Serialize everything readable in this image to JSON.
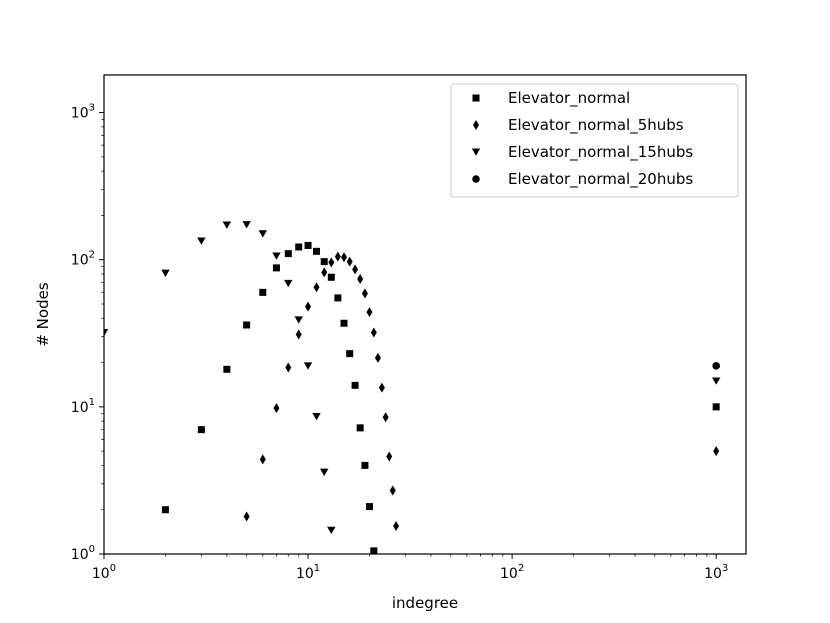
{
  "chart_data": {
    "type": "scatter",
    "xscale": "log",
    "yscale": "log",
    "xlim": [
      1,
      1400
    ],
    "ylim": [
      1,
      1800
    ],
    "xlabel": "indegree",
    "ylabel": "# Nodes",
    "x_ticks": [
      {
        "base": "10",
        "exp": "0"
      },
      {
        "base": "10",
        "exp": "1"
      },
      {
        "base": "10",
        "exp": "2"
      },
      {
        "base": "10",
        "exp": "3"
      }
    ],
    "y_ticks": [
      {
        "base": "10",
        "exp": "0"
      },
      {
        "base": "10",
        "exp": "1"
      },
      {
        "base": "10",
        "exp": "2"
      },
      {
        "base": "10",
        "exp": "3"
      }
    ],
    "grid": false,
    "legend_position": "top-right",
    "series": [
      {
        "name": "Elevator_normal",
        "marker": "square",
        "color": "#000000",
        "points": [
          [
            2,
            2
          ],
          [
            3,
            7
          ],
          [
            4,
            18
          ],
          [
            5,
            36
          ],
          [
            6,
            60
          ],
          [
            7,
            88
          ],
          [
            8,
            110
          ],
          [
            9,
            122
          ],
          [
            10,
            125
          ],
          [
            11,
            114
          ],
          [
            12,
            97
          ],
          [
            13,
            76
          ],
          [
            14,
            55
          ],
          [
            15,
            37
          ],
          [
            16,
            23
          ],
          [
            17,
            14
          ],
          [
            18,
            7.2
          ],
          [
            19,
            4
          ],
          [
            20,
            2.1
          ],
          [
            21,
            1.05
          ],
          [
            1000,
            10
          ]
        ]
      },
      {
        "name": "Elevator_normal_5hubs",
        "marker": "diamond",
        "color": "#000000",
        "points": [
          [
            5,
            1.8
          ],
          [
            6,
            4.4
          ],
          [
            7,
            9.8
          ],
          [
            8,
            18.5
          ],
          [
            9,
            31
          ],
          [
            10,
            48
          ],
          [
            11,
            65
          ],
          [
            12,
            82
          ],
          [
            13,
            96
          ],
          [
            14,
            105
          ],
          [
            15,
            104
          ],
          [
            16,
            97
          ],
          [
            17,
            86
          ],
          [
            18,
            74
          ],
          [
            19,
            59
          ],
          [
            20,
            44
          ],
          [
            21,
            32
          ],
          [
            22,
            21.5
          ],
          [
            23,
            13.5
          ],
          [
            24,
            8.5
          ],
          [
            25,
            4.6
          ],
          [
            26,
            2.7
          ],
          [
            27,
            1.55
          ],
          [
            1000,
            5
          ]
        ]
      },
      {
        "name": "Elevator_normal_15hubs",
        "marker": "triangle-down",
        "color": "#000000",
        "points": [
          [
            1,
            32
          ],
          [
            2,
            81
          ],
          [
            3,
            134
          ],
          [
            4,
            172
          ],
          [
            5,
            173
          ],
          [
            6,
            150
          ],
          [
            7,
            106
          ],
          [
            8,
            69
          ],
          [
            9,
            39
          ],
          [
            10,
            19
          ],
          [
            11,
            8.6
          ],
          [
            12,
            3.6
          ],
          [
            13,
            1.45
          ],
          [
            1000,
            15
          ]
        ]
      },
      {
        "name": "Elevator_normal_20hubs",
        "marker": "circle",
        "color": "#000000",
        "points": [
          [
            1000,
            19
          ]
        ]
      }
    ]
  }
}
